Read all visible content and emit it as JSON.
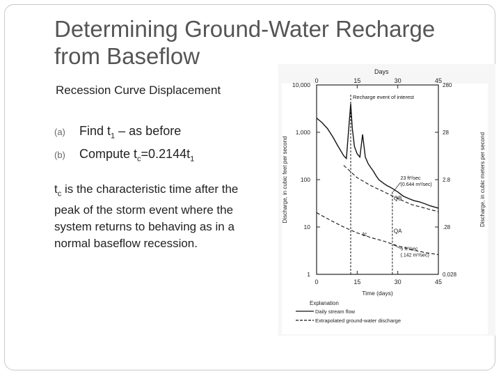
{
  "slide": {
    "title_line1": "Determining Ground-Water Recharge",
    "title_line2": "from Baseflow",
    "subtitle": "Recession Curve Displacement",
    "bullets": [
      {
        "marker": "(a)",
        "text_a": "Find t",
        "sub_a": "1",
        "text_b": " – as before",
        "sub_b": "",
        "text_c": ""
      },
      {
        "marker": "(b)",
        "text_a": "Compute t",
        "sub_a": "c",
        "text_b": "=0.2144t",
        "sub_b": "1",
        "text_c": ""
      }
    ],
    "para_sym": "t",
    "para_sub": "c",
    "para_rest": " is the characteristic time after the peak of the storm event where the system returns to behaving as in a normal baseflow recession."
  },
  "chart_data": {
    "type": "line",
    "title": "",
    "top_axis_label": "Days",
    "top_ticks": [
      "0",
      "15",
      "30",
      "45"
    ],
    "xlabel": "Time (days)",
    "x_ticks": [
      "0",
      "15",
      "30",
      "45"
    ],
    "xlim": [
      0,
      45
    ],
    "ylabel_left": "Discharge, in cubic feet per second",
    "ylabel_right": "Discharge, in cubic meters per second",
    "left_ticks": [
      "10,000",
      "1,000",
      "100",
      "10",
      "1"
    ],
    "right_ticks": [
      "280",
      "28",
      "2.8",
      ".28",
      "0.028"
    ],
    "ylim": [
      1,
      10000
    ],
    "y_scale": "log",
    "annotations": {
      "recharge_event": "Recharge event of interest",
      "q1_line1": "23 ft³/sec",
      "q1_line2": "(0.644 m³/sec)",
      "q2_line1": "5 ft³/sec",
      "q2_line2": "(.142 m³/sec)",
      "qb": "QB",
      "qa": "QA",
      "tc": "tc"
    },
    "legend_title": "Explanation",
    "legend": [
      {
        "label": "Daily stream flow",
        "style": "solid"
      },
      {
        "label": "Extrapolated ground-water discharge",
        "style": "dashed"
      }
    ],
    "series": [
      {
        "name": "Daily stream flow",
        "style": "solid",
        "x": [
          0,
          2,
          4,
          6,
          8,
          10,
          11,
          12,
          12.6,
          13.2,
          14,
          15,
          16,
          17,
          18,
          19,
          20,
          21,
          22,
          23,
          24,
          25,
          26,
          27,
          28,
          30,
          32,
          34,
          36,
          38,
          40,
          42,
          45
        ],
        "y": [
          2000,
          1600,
          1200,
          800,
          500,
          320,
          280,
          1500,
          4000,
          1200,
          500,
          350,
          300,
          900,
          300,
          220,
          180,
          150,
          120,
          100,
          90,
          82,
          75,
          70,
          65,
          55,
          45,
          40,
          36,
          34,
          31,
          28,
          25
        ]
      },
      {
        "name": "Extrapolated ground-water discharge (upper)",
        "style": "dashed",
        "x": [
          10,
          15,
          20,
          25,
          30,
          35,
          40,
          45
        ],
        "y": [
          200,
          110,
          75,
          55,
          40,
          30,
          25,
          21
        ]
      },
      {
        "name": "Extrapolated ground-water discharge (lower)",
        "style": "dashed",
        "x": [
          0,
          5,
          10,
          15,
          20,
          25,
          30,
          35,
          40,
          45
        ],
        "y": [
          20,
          14,
          10,
          7.5,
          6,
          5,
          4,
          3.3,
          2.9,
          2.6
        ]
      }
    ]
  }
}
